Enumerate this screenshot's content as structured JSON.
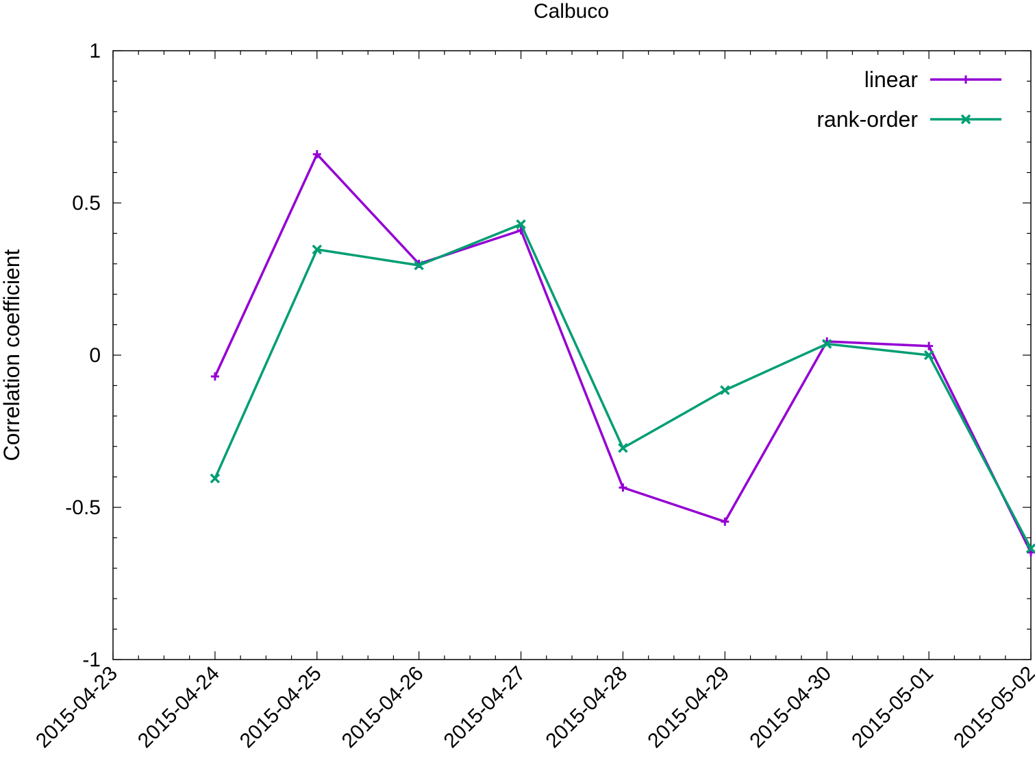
{
  "chart_data": {
    "type": "line",
    "title": "Calbuco",
    "xlabel": "",
    "ylabel": "Correlation coefficient",
    "x": [
      "2015-04-23",
      "2015-04-24",
      "2015-04-25",
      "2015-04-26",
      "2015-04-27",
      "2015-04-28",
      "2015-04-29",
      "2015-04-30",
      "2015-05-01",
      "2015-05-02"
    ],
    "xlim": [
      "2015-04-23",
      "2015-05-02"
    ],
    "ylim": [
      -1,
      1
    ],
    "yticks": [
      {
        "value": 1,
        "label": "1"
      },
      {
        "value": 0.5,
        "label": "0.5"
      },
      {
        "value": 0,
        "label": "0"
      },
      {
        "value": -0.5,
        "label": "-0.5"
      },
      {
        "value": -1,
        "label": "-1"
      }
    ],
    "grid": false,
    "legend_position": "top-right",
    "series": [
      {
        "name": "linear",
        "color": "#9400d3",
        "marker": "plus",
        "x": [
          "2015-04-24",
          "2015-04-25",
          "2015-04-26",
          "2015-04-27",
          "2015-04-28",
          "2015-04-29",
          "2015-04-30",
          "2015-05-01",
          "2015-05-02"
        ],
        "values": [
          -0.07,
          0.66,
          0.3,
          0.41,
          -0.435,
          -0.547,
          0.045,
          0.03,
          -0.648
        ]
      },
      {
        "name": "rank-order",
        "color": "#009e73",
        "marker": "cross",
        "x": [
          "2015-04-24",
          "2015-04-25",
          "2015-04-26",
          "2015-04-27",
          "2015-04-28",
          "2015-04-29",
          "2015-04-30",
          "2015-05-01",
          "2015-05-02"
        ],
        "values": [
          -0.405,
          0.347,
          0.295,
          0.43,
          -0.305,
          -0.115,
          0.037,
          0.0,
          -0.635
        ]
      }
    ]
  }
}
